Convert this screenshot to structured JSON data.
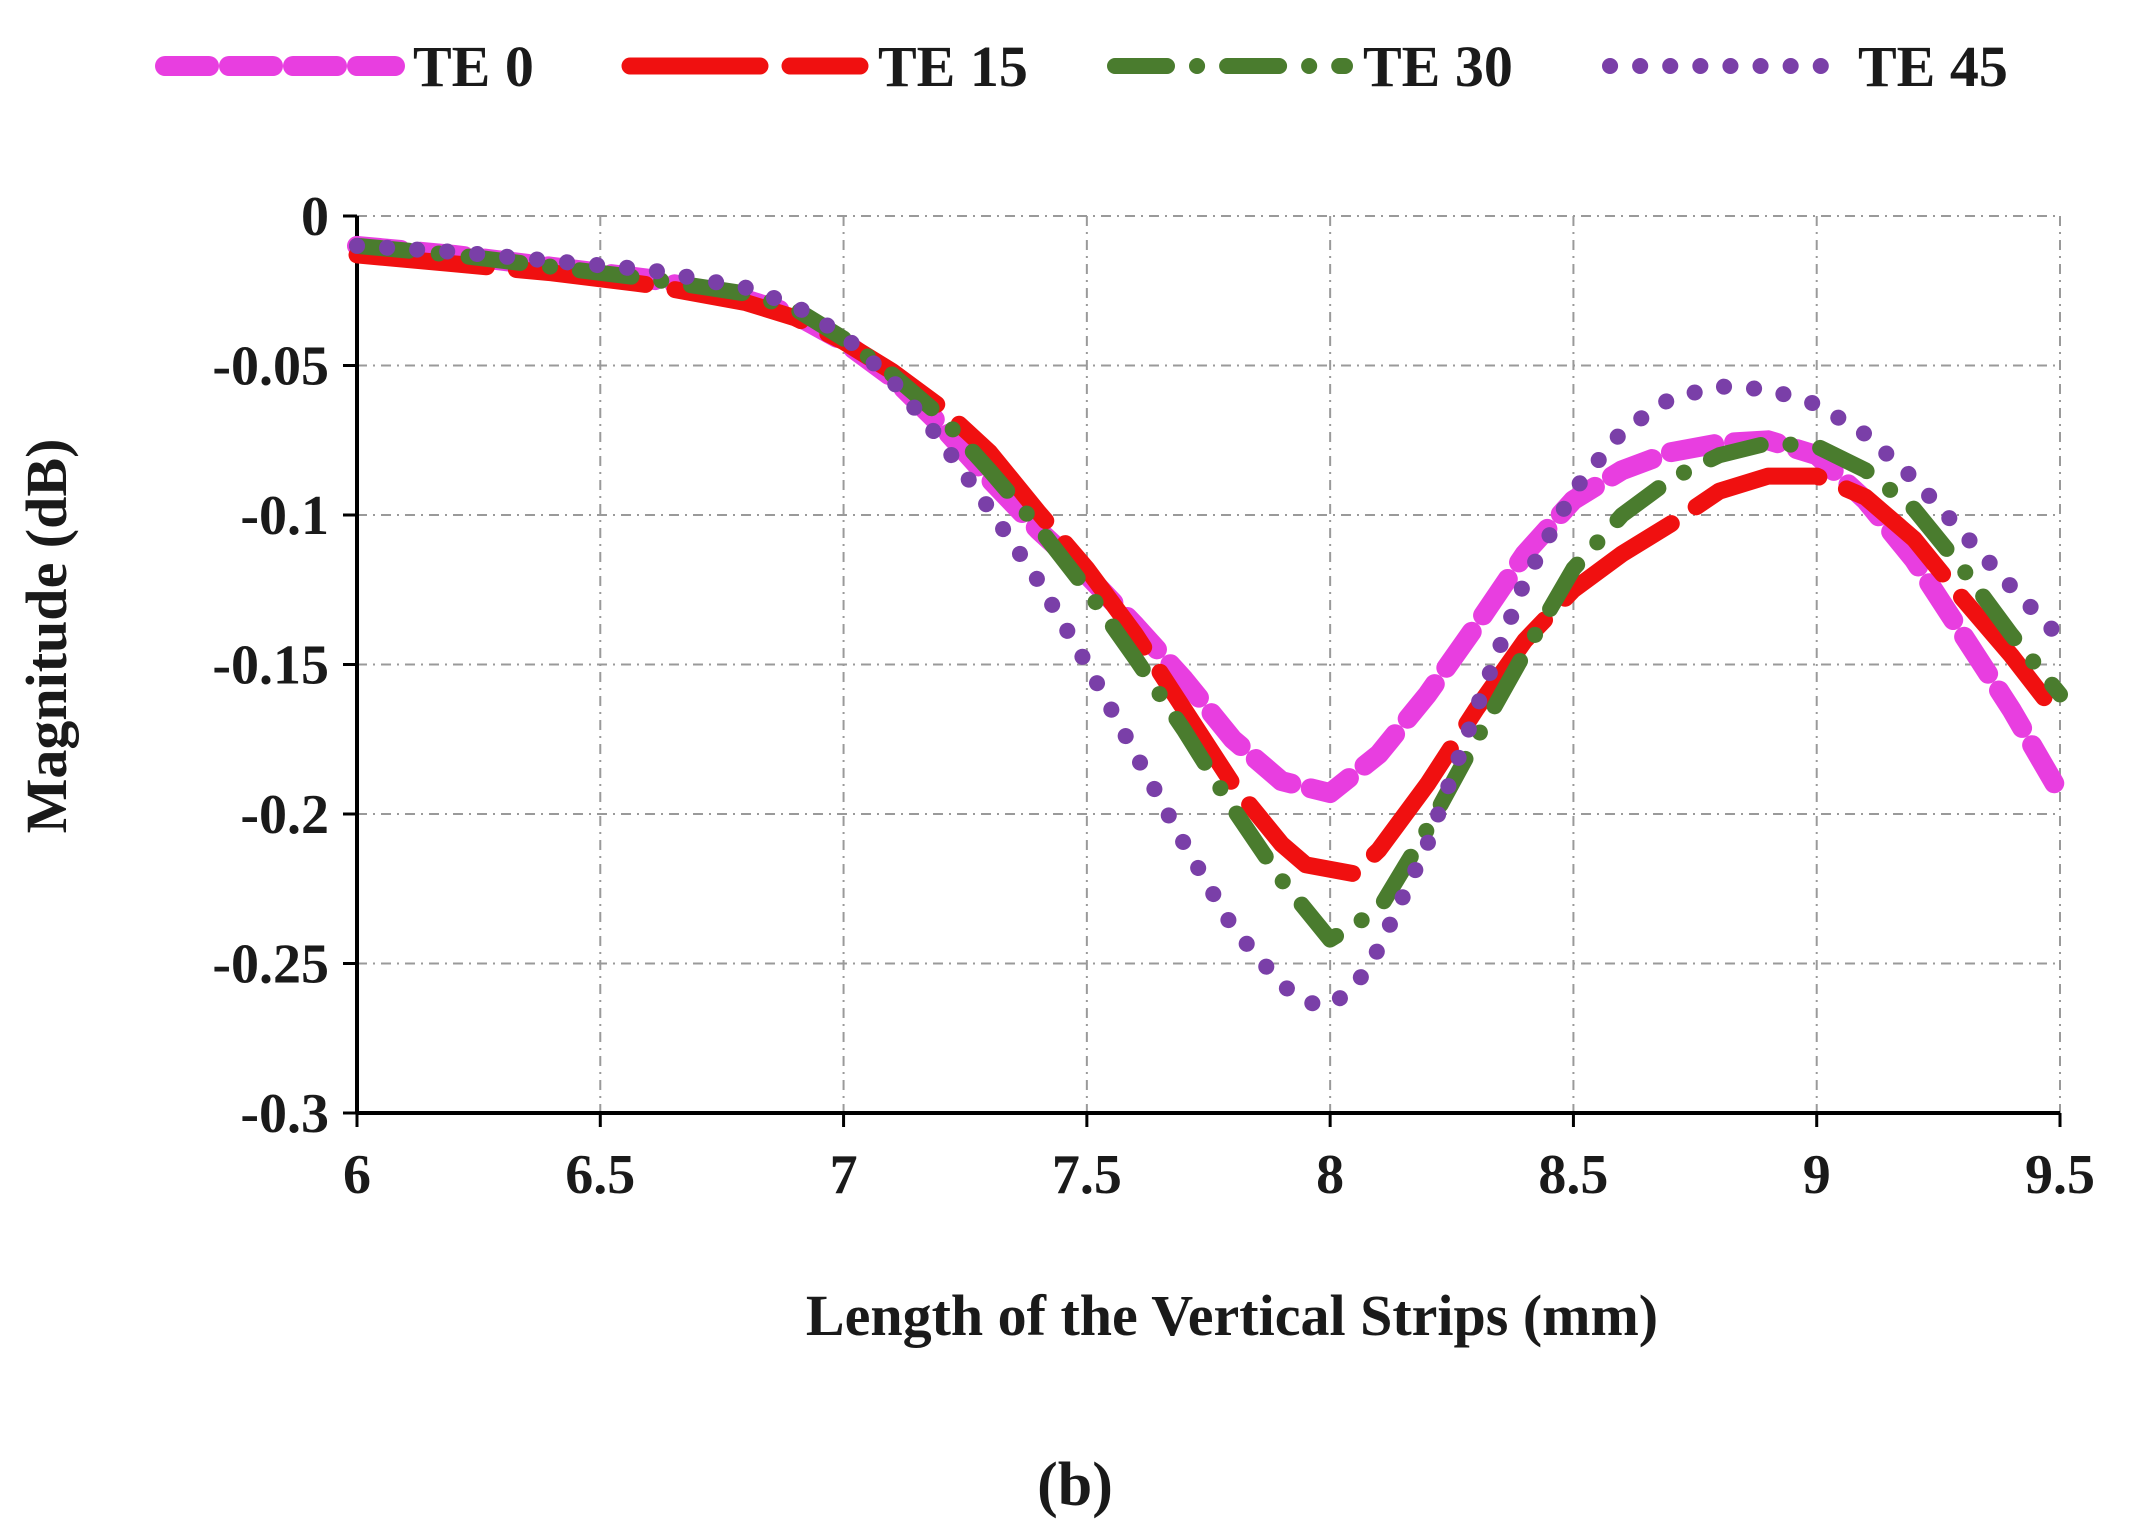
{
  "figure_label": "(b)",
  "chart_data": {
    "type": "line",
    "title": "",
    "xlabel": "Length of  the Vertical Strips (mm)",
    "ylabel": "Magnitude (dB)",
    "xlim": [
      6,
      9.5
    ],
    "ylim": [
      -0.3,
      0
    ],
    "xticks": [
      6,
      6.5,
      7,
      7.5,
      8,
      8.5,
      9,
      9.5
    ],
    "xtick_labels": [
      "6",
      "6.5",
      "7",
      "7.5",
      "8",
      "8.5",
      "9",
      "9.5"
    ],
    "yticks": [
      0,
      -0.05,
      -0.1,
      -0.15,
      -0.2,
      -0.25,
      -0.3
    ],
    "ytick_labels": [
      "0",
      "-0.05",
      "-0.1",
      "-0.15",
      "-0.2",
      "-0.25",
      "-0.3"
    ],
    "grid": true,
    "legend_position": "top",
    "series": [
      {
        "name": "TE 0",
        "color": "#e83ee0",
        "style": "dashed",
        "x": [
          6,
          6.2,
          6.4,
          6.6,
          6.8,
          6.9,
          7.0,
          7.1,
          7.2,
          7.3,
          7.4,
          7.5,
          7.6,
          7.7,
          7.8,
          7.9,
          8.0,
          8.1,
          8.2,
          8.3,
          8.4,
          8.5,
          8.6,
          8.7,
          8.8,
          8.9,
          9.0,
          9.1,
          9.2,
          9.3,
          9.4,
          9.5
        ],
        "values": [
          -0.01,
          -0.013,
          -0.017,
          -0.021,
          -0.028,
          -0.033,
          -0.042,
          -0.054,
          -0.07,
          -0.088,
          -0.105,
          -0.12,
          -0.137,
          -0.155,
          -0.175,
          -0.189,
          -0.193,
          -0.18,
          -0.16,
          -0.137,
          -0.113,
          -0.095,
          -0.085,
          -0.079,
          -0.076,
          -0.075,
          -0.08,
          -0.095,
          -0.115,
          -0.14,
          -0.165,
          -0.193
        ]
      },
      {
        "name": "TE 15",
        "color": "#f01010",
        "style": "long-dash",
        "x": [
          6,
          6.2,
          6.4,
          6.6,
          6.8,
          6.9,
          7.0,
          7.1,
          7.2,
          7.3,
          7.4,
          7.5,
          7.6,
          7.7,
          7.8,
          7.9,
          7.95,
          8.05,
          8.1,
          8.2,
          8.3,
          8.4,
          8.5,
          8.6,
          8.7,
          8.8,
          8.9,
          9.0,
          9.1,
          9.2,
          9.3,
          9.4,
          9.5
        ],
        "values": [
          -0.013,
          -0.016,
          -0.019,
          -0.023,
          -0.029,
          -0.034,
          -0.042,
          -0.052,
          -0.064,
          -0.079,
          -0.099,
          -0.118,
          -0.14,
          -0.165,
          -0.19,
          -0.21,
          -0.217,
          -0.22,
          -0.212,
          -0.19,
          -0.165,
          -0.142,
          -0.125,
          -0.113,
          -0.103,
          -0.092,
          -0.087,
          -0.087,
          -0.094,
          -0.108,
          -0.128,
          -0.147,
          -0.168
        ]
      },
      {
        "name": "TE 30",
        "color": "#4a7c2e",
        "style": "dash-dot",
        "x": [
          6,
          6.2,
          6.4,
          6.6,
          6.8,
          6.9,
          7.0,
          7.1,
          7.2,
          7.3,
          7.4,
          7.5,
          7.6,
          7.7,
          7.8,
          7.9,
          8.0,
          8.1,
          8.2,
          8.3,
          8.4,
          8.5,
          8.6,
          8.7,
          8.8,
          8.9,
          9.0,
          9.1,
          9.2,
          9.3,
          9.4,
          9.5
        ],
        "values": [
          -0.01,
          -0.013,
          -0.017,
          -0.021,
          -0.026,
          -0.031,
          -0.041,
          -0.053,
          -0.067,
          -0.085,
          -0.104,
          -0.125,
          -0.148,
          -0.172,
          -0.198,
          -0.222,
          -0.242,
          -0.232,
          -0.205,
          -0.175,
          -0.146,
          -0.118,
          -0.1,
          -0.088,
          -0.08,
          -0.076,
          -0.077,
          -0.085,
          -0.098,
          -0.118,
          -0.14,
          -0.16
        ]
      },
      {
        "name": "TE 45",
        "color": "#7a3fa8",
        "style": "dotted",
        "x": [
          6,
          6.2,
          6.4,
          6.6,
          6.8,
          6.9,
          7.0,
          7.1,
          7.2,
          7.3,
          7.4,
          7.5,
          7.6,
          7.7,
          7.8,
          7.9,
          7.95,
          8.0,
          8.05,
          8.1,
          8.2,
          8.3,
          8.4,
          8.5,
          8.6,
          8.7,
          8.8,
          8.9,
          9.0,
          9.1,
          9.2,
          9.3,
          9.4,
          9.5
        ],
        "values": [
          -0.01,
          -0.012,
          -0.015,
          -0.018,
          -0.024,
          -0.03,
          -0.04,
          -0.055,
          -0.075,
          -0.098,
          -0.122,
          -0.15,
          -0.18,
          -0.21,
          -0.238,
          -0.257,
          -0.263,
          -0.264,
          -0.258,
          -0.245,
          -0.21,
          -0.165,
          -0.122,
          -0.092,
          -0.072,
          -0.061,
          -0.057,
          -0.058,
          -0.063,
          -0.073,
          -0.088,
          -0.106,
          -0.124,
          -0.141
        ]
      }
    ]
  }
}
